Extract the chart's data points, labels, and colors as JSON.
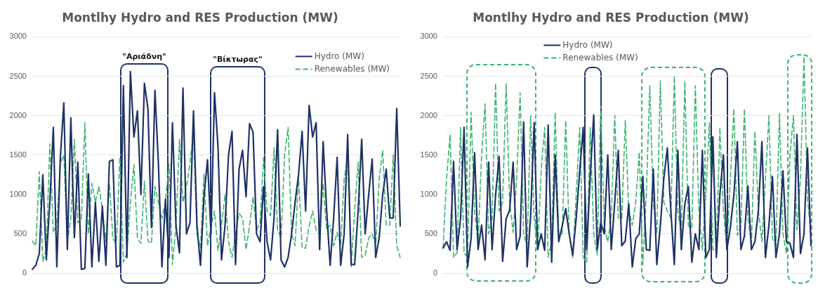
{
  "chart_data": [
    {
      "type": "line",
      "title": "Montlhy Hydro and RES Production (MW)",
      "categories": [
        null,
        null,
        null,
        null,
        null,
        null,
        null,
        null,
        null,
        null,
        null,
        null,
        null,
        null,
        null,
        null,
        null,
        null,
        null,
        null,
        null,
        null,
        null,
        null,
        null,
        null,
        null,
        null,
        null,
        null,
        null,
        null,
        null,
        null,
        null,
        null,
        null,
        null,
        null,
        null,
        null,
        null,
        null,
        null,
        null,
        null,
        null,
        null,
        null,
        null,
        null,
        null,
        null,
        null,
        null,
        null,
        null,
        null,
        null,
        null,
        null,
        null,
        null,
        null,
        null,
        null,
        null,
        null,
        null,
        null,
        null,
        null,
        null,
        null,
        null,
        null,
        null,
        null,
        null,
        null,
        null,
        null,
        null,
        null,
        null,
        null,
        null,
        null,
        null,
        null,
        null,
        null,
        null,
        null,
        null,
        null,
        null,
        null,
        null,
        null,
        null,
        null,
        null,
        null,
        null,
        null
      ],
      "series": [
        {
          "name": "Hydro (MW)",
          "color": "#1f3266",
          "line_style": "solid",
          "values": [
            50,
            100,
            250,
            1250,
            170,
            900,
            1850,
            80,
            1470,
            2160,
            300,
            1970,
            450,
            1410,
            50,
            60,
            1260,
            80,
            900,
            150,
            850,
            100,
            1420,
            1440,
            80,
            100,
            2380,
            200,
            2560,
            1730,
            2060,
            1000,
            2410,
            2090,
            580,
            2320,
            1380,
            80,
            940,
            200,
            1910,
            600,
            260,
            2350,
            500,
            640,
            2060,
            600,
            100,
            970,
            1440,
            500,
            2290,
            1600,
            170,
            600,
            1500,
            1800,
            110,
            1320,
            1560,
            970,
            1900,
            1790,
            500,
            400,
            1100,
            400,
            170,
            700,
            1820,
            170,
            80,
            200,
            500,
            900,
            1260,
            1800,
            790,
            2130,
            1730,
            1910,
            300,
            1670,
            800,
            100,
            700,
            1470,
            100,
            500,
            1760,
            110,
            110,
            800,
            1700,
            500,
            1000,
            1450,
            200,
            450,
            1000,
            1320,
            700,
            700,
            2090,
            600
          ]
        },
        {
          "name": "Renewables (MW)",
          "color": "#3cb371",
          "line_style": "dashed",
          "values": [
            410,
            350,
            1290,
            150,
            300,
            1640,
            520,
            610,
            1400,
            1500,
            400,
            700,
            1700,
            640,
            670,
            1910,
            500,
            1140,
            900,
            1100,
            820,
            400,
            1140,
            440,
            380,
            1470,
            140,
            260,
            900,
            1380,
            440,
            380,
            1170,
            410,
            380,
            1100,
            900,
            700,
            900,
            1380,
            110,
            600,
            1700,
            900,
            1100,
            1400,
            1790,
            500,
            320,
            1260,
            350,
            600,
            790,
            290,
            600,
            1000,
            400,
            200,
            500,
            760,
            700,
            300,
            600,
            970,
            550,
            640,
            1470,
            790,
            730,
            1590,
            550,
            450,
            1500,
            1850,
            500,
            350,
            1230,
            320,
            320,
            600,
            790,
            550,
            500,
            1140,
            550,
            610,
            350,
            520,
            350,
            1200,
            1470,
            80,
            800,
            1410,
            200,
            230,
            450,
            500,
            350,
            1200,
            1560,
            610,
            610,
            1500,
            350,
            200
          ]
        }
      ],
      "ylim": [
        0,
        3000
      ],
      "yticks": [
        0,
        500,
        1000,
        1500,
        2000,
        2500,
        3000
      ],
      "grid": "y",
      "legend": "top right",
      "marker": "none",
      "tick_labels": "y",
      "annotations": [
        "\"Αριάδνη\"",
        "\"Βίκτωρας\""
      ]
    },
    {
      "type": "line",
      "title": "Montlhy Hydro and RES Production (MW)",
      "categories": [
        null,
        null,
        null,
        null,
        null,
        null,
        null,
        null,
        null,
        null,
        null,
        null,
        null,
        null,
        null,
        null,
        null,
        null,
        null,
        null,
        null,
        null,
        null,
        null,
        null,
        null,
        null,
        null,
        null,
        null,
        null,
        null,
        null,
        null,
        null,
        null,
        null,
        null,
        null,
        null,
        null,
        null,
        null,
        null,
        null,
        null,
        null,
        null,
        null,
        null,
        null,
        null,
        null,
        null,
        null,
        null,
        null,
        null,
        null,
        null,
        null,
        null,
        null,
        null,
        null,
        null,
        null,
        null,
        null,
        null,
        null,
        null,
        null,
        null,
        null,
        null,
        null,
        null,
        null,
        null,
        null,
        null,
        null,
        null,
        null,
        null,
        null,
        null,
        null,
        null,
        null,
        null,
        null,
        null,
        null,
        null,
        null,
        null,
        null,
        null,
        null,
        null,
        null,
        null,
        null,
        null
      ],
      "series": [
        {
          "name": "Hydro (MW)",
          "color": "#1f3266",
          "line_style": "solid",
          "values": [
            320,
            400,
            290,
            1420,
            300,
            700,
            1850,
            80,
            440,
            1530,
            300,
            610,
            170,
            1410,
            300,
            1000,
            1480,
            150,
            690,
            800,
            1410,
            300,
            470,
            1920,
            80,
            730,
            1910,
            300,
            500,
            290,
            1880,
            140,
            1500,
            400,
            600,
            820,
            500,
            230,
            700,
            1300,
            1850,
            300,
            1230,
            2010,
            300,
            640,
            500,
            1500,
            300,
            900,
            1560,
            350,
            410,
            880,
            80,
            440,
            500,
            1230,
            300,
            290,
            1320,
            110,
            600,
            1200,
            1590,
            800,
            110,
            1560,
            300,
            880,
            1100,
            140,
            500,
            300,
            1560,
            200,
            300,
            1730,
            200,
            1000,
            1500,
            300,
            580,
            1000,
            1670,
            300,
            470,
            1110,
            300,
            400,
            800,
            1670,
            200,
            610,
            1230,
            200,
            500,
            1300,
            400,
            380,
            200,
            1760,
            250,
            500,
            1590,
            350
          ]
        },
        {
          "name": "Renewables (MW)",
          "color": "#3cb371",
          "line_style": "dashed",
          "values": [
            320,
            1200,
            1760,
            200,
            260,
            1850,
            260,
            200,
            2040,
            800,
            380,
            1500,
            2150,
            500,
            700,
            2410,
            790,
            900,
            2410,
            900,
            520,
            1200,
            2290,
            500,
            350,
            2000,
            700,
            300,
            1300,
            1850,
            200,
            400,
            2040,
            500,
            500,
            1940,
            500,
            200,
            1000,
            1850,
            200,
            140,
            1850,
            500,
            230,
            2120,
            600,
            400,
            700,
            2000,
            700,
            700,
            1940,
            790,
            610,
            900,
            1540,
            110,
            1000,
            2380,
            900,
            500,
            2440,
            900,
            790,
            700,
            2500,
            790,
            520,
            2440,
            600,
            580,
            2380,
            800,
            300,
            1000,
            1910,
            300,
            300,
            1850,
            800,
            300,
            1200,
            2090,
            480,
            600,
            2090,
            700,
            380,
            1800,
            800,
            400,
            1200,
            2000,
            450,
            350,
            2030,
            500,
            250,
            1500,
            2000,
            550,
            1200,
            2750,
            940,
            500
          ]
        }
      ],
      "ylim": [
        0,
        3000
      ],
      "yticks": [
        0,
        500,
        1000,
        1500,
        2000,
        2500,
        3000
      ],
      "grid": "y",
      "legend": "top",
      "marker": "none",
      "tick_labels": "y"
    }
  ]
}
